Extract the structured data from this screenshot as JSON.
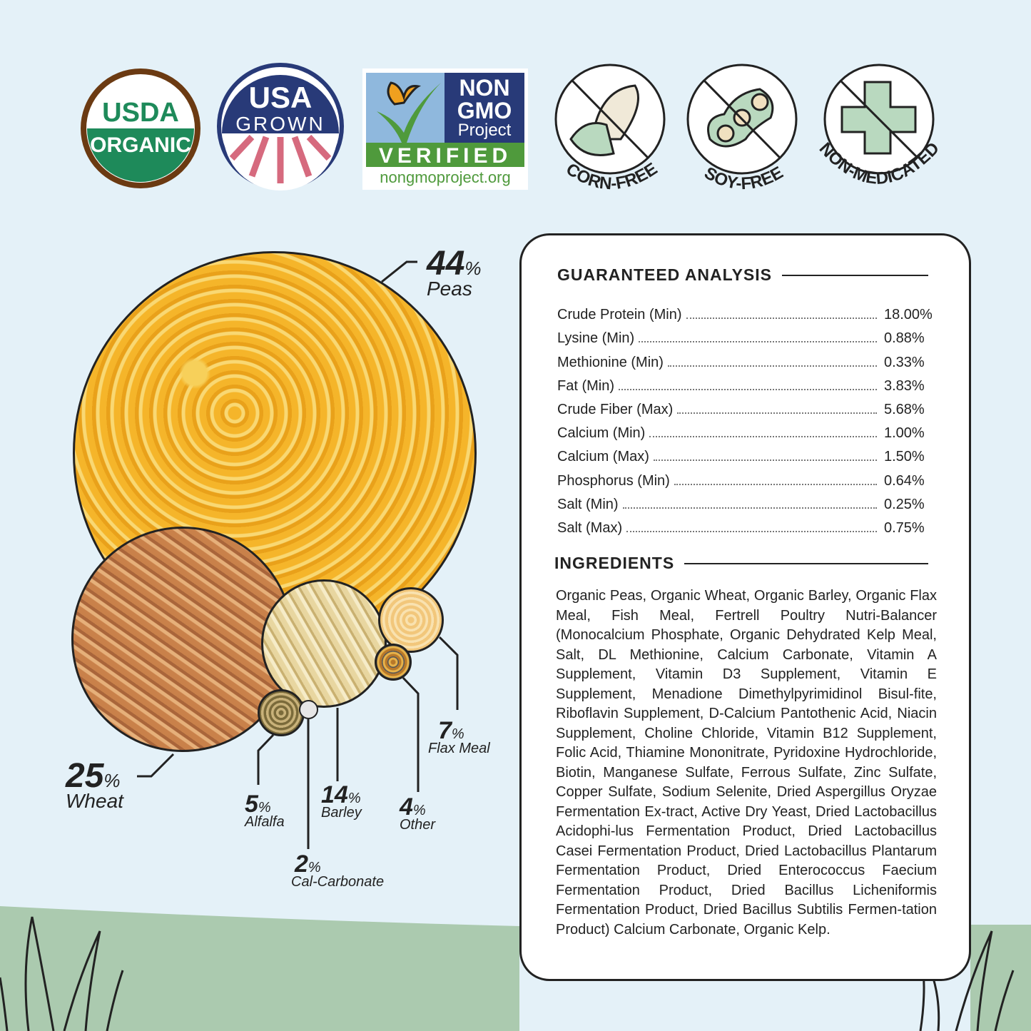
{
  "badges": {
    "usda": {
      "line1": "USDA",
      "line2": "ORGANIC"
    },
    "usa": {
      "line1": "USA",
      "line2": "GROWN"
    },
    "nongmo": {
      "line1": "NON",
      "line2": "GMO",
      "line3": "Project",
      "verified": "VERIFIED",
      "url": "nongmoproject.org"
    },
    "corn_free": "CORN-FREE",
    "soy_free": "SOY-FREE",
    "non_medicated": "NON-MEDICATED"
  },
  "composition": [
    {
      "pct": "44",
      "name": "Peas"
    },
    {
      "pct": "25",
      "name": "Wheat"
    },
    {
      "pct": "14",
      "name": "Barley"
    },
    {
      "pct": "7",
      "name": "Flax Meal"
    },
    {
      "pct": "5",
      "name": "Alfalfa"
    },
    {
      "pct": "4",
      "name": "Other"
    },
    {
      "pct": "2",
      "name": "Cal-Carbonate"
    }
  ],
  "percent_sign": "%",
  "analysis": {
    "title": "GUARANTEED ANALYSIS",
    "rows": [
      {
        "label": "Crude Protein (Min)",
        "value": "18.00%"
      },
      {
        "label": "Lysine (Min)",
        "value": "0.88%"
      },
      {
        "label": "Methionine (Min)",
        "value": "0.33%"
      },
      {
        "label": "Fat (Min)",
        "value": "3.83%"
      },
      {
        "label": "Crude Fiber (Max)",
        "value": "5.68%"
      },
      {
        "label": "Calcium (Min)",
        "value": "1.00%"
      },
      {
        "label": "Calcium (Max)",
        "value": "1.50%"
      },
      {
        "label": "Phosphorus (Min)",
        "value": "0.64%"
      },
      {
        "label": "Salt (Min)",
        "value": "0.25%"
      },
      {
        "label": "Salt (Max)",
        "value": "0.75%"
      }
    ]
  },
  "ingredients": {
    "title": "INGREDIENTS",
    "text": "Organic Peas, Organic Wheat, Organic Barley, Organic Flax Meal, Fish Meal, Fertrell Poultry Nutri-Balancer (Monocalcium Phosphate, Organic Dehydrated Kelp Meal, Salt, DL Methionine, Calcium Carbonate, Vitamin A Supplement, Vitamin D3 Supplement, Vitamin E Supplement, Menadione Dimethylpyrimidinol Bisul-fite, Riboflavin Supplement, D-Calcium Pantothenic Acid, Niacin Supplement, Choline Chloride, Vitamin B12 Supplement, Folic Acid, Thiamine Mononitrate, Pyridoxine Hydrochloride, Biotin, Manganese Sulfate, Ferrous Sulfate, Zinc Sulfate, Copper Sulfate, Sodium Selenite, Dried Aspergillus Oryzae Fermentation Ex-tract, Active Dry Yeast, Dried Lactobacillus Acidophi-lus Fermentation Product, Dried Lactobacillus Casei Fermentation Product, Dried Lactobacillus Plantarum Fermentation Product, Dried Enterococcus Faecium Fermentation Product, Dried Bacillus Licheniformis Fermentation Product, Dried Bacillus Subtilis Fermen-tation Product) Calcium Carbonate, Organic Kelp."
  },
  "colors": {
    "background": "#e4f1f8",
    "grass": "#abcaaf",
    "usda_green": "#1e8a5a",
    "usda_brown": "#6b3a12",
    "usa_navy": "#283a78",
    "usa_red": "#d66a7e",
    "nongmo_green": "#4f9a3c",
    "nongmo_blue": "#8fb8dd",
    "icon_green": "#b9d9bf"
  }
}
